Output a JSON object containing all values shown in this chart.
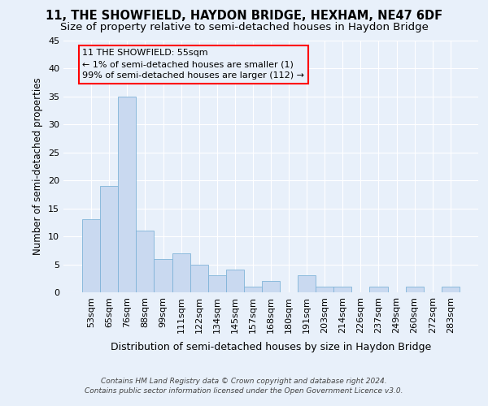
{
  "title": "11, THE SHOWFIELD, HAYDON BRIDGE, HEXHAM, NE47 6DF",
  "subtitle": "Size of property relative to semi-detached houses in Haydon Bridge",
  "xlabel": "Distribution of semi-detached houses by size in Haydon Bridge",
  "ylabel": "Number of semi-detached properties",
  "categories": [
    "53sqm",
    "65sqm",
    "76sqm",
    "88sqm",
    "99sqm",
    "111sqm",
    "122sqm",
    "134sqm",
    "145sqm",
    "157sqm",
    "168sqm",
    "180sqm",
    "191sqm",
    "203sqm",
    "214sqm",
    "226sqm",
    "237sqm",
    "249sqm",
    "260sqm",
    "272sqm",
    "283sqm"
  ],
  "values": [
    13,
    19,
    35,
    11,
    6,
    7,
    5,
    3,
    4,
    1,
    2,
    0,
    3,
    1,
    1,
    0,
    1,
    0,
    1,
    0,
    1
  ],
  "bar_color": "#c9d9f0",
  "bar_edge_color": "#7fb3d8",
  "annotation_text": "11 THE SHOWFIELD: 55sqm\n← 1% of semi-detached houses are smaller (1)\n99% of semi-detached houses are larger (112) →",
  "annotation_box_edge_color": "red",
  "ylim": [
    0,
    45
  ],
  "yticks": [
    0,
    5,
    10,
    15,
    20,
    25,
    30,
    35,
    40,
    45
  ],
  "footer_line1": "Contains HM Land Registry data © Crown copyright and database right 2024.",
  "footer_line2": "Contains public sector information licensed under the Open Government Licence v3.0.",
  "bg_color": "#e8f0fa",
  "plot_bg_color": "#e8f0fa",
  "grid_color": "#ffffff",
  "title_fontsize": 10.5,
  "subtitle_fontsize": 9.5,
  "xlabel_fontsize": 9,
  "ylabel_fontsize": 8.5,
  "tick_fontsize": 8,
  "annotation_fontsize": 8,
  "footer_fontsize": 6.5
}
